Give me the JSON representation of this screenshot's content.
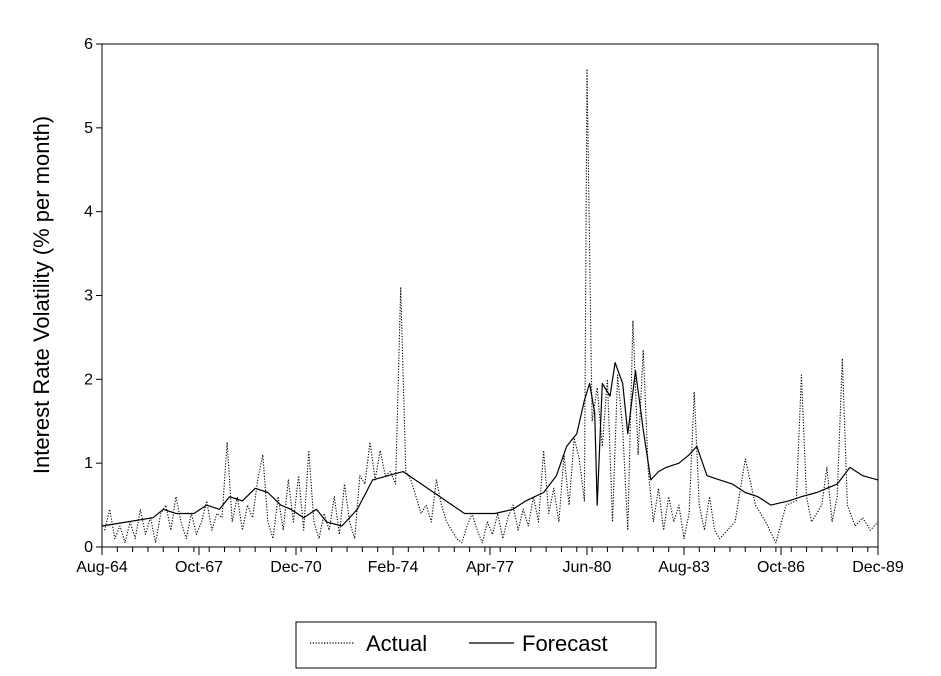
{
  "chart_data": {
    "type": "line",
    "title": "",
    "xlabel": "",
    "ylabel": "Interest Rate Volatility (% per month)",
    "ylim": [
      0,
      6
    ],
    "yticks": [
      0,
      1,
      2,
      3,
      4,
      5,
      6
    ],
    "xlim": [
      "1964-08",
      "1989-12"
    ],
    "xticks": [
      "Aug-64",
      "Oct-67",
      "Dec-70",
      "Feb-74",
      "Apr-77",
      "Jun-80",
      "Aug-83",
      "Oct-86",
      "Dec-89"
    ],
    "grid": false,
    "legend_position": "bottom-center",
    "series": [
      {
        "name": "Actual",
        "style": "dotted",
        "color": "#000000",
        "points": [
          [
            "1964-09",
            0.2
          ],
          [
            "1964-11",
            0.45
          ],
          [
            "1965-01",
            0.1
          ],
          [
            "1965-03",
            0.25
          ],
          [
            "1965-05",
            0.05
          ],
          [
            "1965-07",
            0.3
          ],
          [
            "1965-09",
            0.1
          ],
          [
            "1965-11",
            0.45
          ],
          [
            "1966-01",
            0.15
          ],
          [
            "1966-03",
            0.35
          ],
          [
            "1966-05",
            0.05
          ],
          [
            "1966-07",
            0.4
          ],
          [
            "1966-09",
            0.5
          ],
          [
            "1966-11",
            0.2
          ],
          [
            "1967-01",
            0.6
          ],
          [
            "1967-03",
            0.3
          ],
          [
            "1967-05",
            0.1
          ],
          [
            "1967-07",
            0.4
          ],
          [
            "1967-09",
            0.15
          ],
          [
            "1967-11",
            0.3
          ],
          [
            "1968-01",
            0.55
          ],
          [
            "1968-03",
            0.2
          ],
          [
            "1968-05",
            0.4
          ],
          [
            "1968-07",
            0.35
          ],
          [
            "1968-09",
            1.25
          ],
          [
            "1968-11",
            0.3
          ],
          [
            "1969-01",
            0.6
          ],
          [
            "1969-03",
            0.2
          ],
          [
            "1969-05",
            0.5
          ],
          [
            "1969-07",
            0.35
          ],
          [
            "1969-09",
            0.8
          ],
          [
            "1969-11",
            1.1
          ],
          [
            "1970-01",
            0.3
          ],
          [
            "1970-03",
            0.1
          ],
          [
            "1970-05",
            0.6
          ],
          [
            "1970-07",
            0.2
          ],
          [
            "1970-09",
            0.8
          ],
          [
            "1970-11",
            0.3
          ],
          [
            "1971-01",
            0.85
          ],
          [
            "1971-03",
            0.2
          ],
          [
            "1971-05",
            1.15
          ],
          [
            "1971-07",
            0.3
          ],
          [
            "1971-09",
            0.1
          ],
          [
            "1971-11",
            0.4
          ],
          [
            "1972-01",
            0.2
          ],
          [
            "1972-03",
            0.6
          ],
          [
            "1972-05",
            0.15
          ],
          [
            "1972-07",
            0.75
          ],
          [
            "1972-09",
            0.3
          ],
          [
            "1972-11",
            0.1
          ],
          [
            "1973-01",
            0.85
          ],
          [
            "1973-03",
            0.75
          ],
          [
            "1973-05",
            1.25
          ],
          [
            "1973-07",
            0.8
          ],
          [
            "1973-09",
            1.15
          ],
          [
            "1973-11",
            0.85
          ],
          [
            "1974-01",
            0.9
          ],
          [
            "1974-03",
            0.75
          ],
          [
            "1974-05",
            3.1
          ],
          [
            "1974-07",
            0.9
          ],
          [
            "1974-09",
            0.8
          ],
          [
            "1974-11",
            0.6
          ],
          [
            "1975-01",
            0.4
          ],
          [
            "1975-03",
            0.5
          ],
          [
            "1975-05",
            0.3
          ],
          [
            "1975-07",
            0.8
          ],
          [
            "1975-09",
            0.5
          ],
          [
            "1975-11",
            0.3
          ],
          [
            "1976-01",
            0.2
          ],
          [
            "1976-03",
            0.1
          ],
          [
            "1976-05",
            0.05
          ],
          [
            "1976-07",
            0.25
          ],
          [
            "1976-09",
            0.4
          ],
          [
            "1976-11",
            0.2
          ],
          [
            "1977-01",
            0.05
          ],
          [
            "1977-03",
            0.3
          ],
          [
            "1977-05",
            0.15
          ],
          [
            "1977-07",
            0.4
          ],
          [
            "1977-09",
            0.1
          ],
          [
            "1977-11",
            0.35
          ],
          [
            "1978-01",
            0.5
          ],
          [
            "1978-03",
            0.2
          ],
          [
            "1978-05",
            0.45
          ],
          [
            "1978-07",
            0.25
          ],
          [
            "1978-09",
            0.6
          ],
          [
            "1978-11",
            0.3
          ],
          [
            "1979-01",
            1.15
          ],
          [
            "1979-03",
            0.4
          ],
          [
            "1979-05",
            0.7
          ],
          [
            "1979-07",
            0.3
          ],
          [
            "1979-09",
            1.1
          ],
          [
            "1979-11",
            0.5
          ],
          [
            "1980-01",
            1.3
          ],
          [
            "1980-03",
            1.05
          ],
          [
            "1980-05",
            0.55
          ],
          [
            "1980-06",
            5.7
          ],
          [
            "1980-08",
            1.5
          ],
          [
            "1980-10",
            1.9
          ],
          [
            "1980-12",
            1.2
          ],
          [
            "1981-02",
            2.0
          ],
          [
            "1981-04",
            0.3
          ],
          [
            "1981-06",
            2.05
          ],
          [
            "1981-08",
            1.4
          ],
          [
            "1981-10",
            0.2
          ],
          [
            "1981-12",
            2.7
          ],
          [
            "1982-02",
            1.1
          ],
          [
            "1982-04",
            2.35
          ],
          [
            "1982-06",
            0.9
          ],
          [
            "1982-08",
            0.3
          ],
          [
            "1982-10",
            0.7
          ],
          [
            "1982-12",
            0.2
          ],
          [
            "1983-02",
            0.6
          ],
          [
            "1983-04",
            0.3
          ],
          [
            "1983-06",
            0.5
          ],
          [
            "1983-08",
            0.1
          ],
          [
            "1983-10",
            0.4
          ],
          [
            "1983-12",
            1.85
          ],
          [
            "1984-02",
            0.5
          ],
          [
            "1984-04",
            0.2
          ],
          [
            "1984-06",
            0.6
          ],
          [
            "1984-08",
            0.2
          ],
          [
            "1984-10",
            0.1
          ],
          [
            "1985-04",
            0.3
          ],
          [
            "1985-08",
            1.05
          ],
          [
            "1985-12",
            0.5
          ],
          [
            "1986-04",
            0.3
          ],
          [
            "1986-08",
            0.05
          ],
          [
            "1986-12",
            0.5
          ],
          [
            "1987-04",
            0.55
          ],
          [
            "1987-06",
            2.05
          ],
          [
            "1987-08",
            0.6
          ],
          [
            "1987-10",
            0.3
          ],
          [
            "1988-02",
            0.5
          ],
          [
            "1988-04",
            0.95
          ],
          [
            "1988-06",
            0.3
          ],
          [
            "1988-08",
            0.6
          ],
          [
            "1988-10",
            2.25
          ],
          [
            "1988-12",
            0.5
          ],
          [
            "1989-03",
            0.25
          ],
          [
            "1989-06",
            0.35
          ],
          [
            "1989-09",
            0.2
          ],
          [
            "1989-12",
            0.3
          ]
        ]
      },
      {
        "name": "Forecast",
        "style": "solid",
        "color": "#000000",
        "points": [
          [
            "1964-08",
            0.25
          ],
          [
            "1965-06",
            0.3
          ],
          [
            "1966-04",
            0.35
          ],
          [
            "1966-08",
            0.45
          ],
          [
            "1967-01",
            0.4
          ],
          [
            "1967-08",
            0.4
          ],
          [
            "1968-01",
            0.5
          ],
          [
            "1968-06",
            0.45
          ],
          [
            "1968-10",
            0.6
          ],
          [
            "1969-03",
            0.55
          ],
          [
            "1969-08",
            0.7
          ],
          [
            "1970-01",
            0.65
          ],
          [
            "1970-06",
            0.5
          ],
          [
            "1970-10",
            0.45
          ],
          [
            "1971-03",
            0.35
          ],
          [
            "1971-08",
            0.45
          ],
          [
            "1971-12",
            0.3
          ],
          [
            "1972-06",
            0.25
          ],
          [
            "1972-12",
            0.45
          ],
          [
            "1973-06",
            0.8
          ],
          [
            "1973-12",
            0.85
          ],
          [
            "1974-06",
            0.9
          ],
          [
            "1976-06",
            0.4
          ],
          [
            "1977-06",
            0.4
          ],
          [
            "1978-01",
            0.45
          ],
          [
            "1978-06",
            0.55
          ],
          [
            "1979-01",
            0.65
          ],
          [
            "1979-06",
            0.85
          ],
          [
            "1979-10",
            1.2
          ],
          [
            "1980-02",
            1.35
          ],
          [
            "1980-05",
            1.75
          ],
          [
            "1980-07",
            1.95
          ],
          [
            "1980-09",
            1.6
          ],
          [
            "1980-10",
            0.5
          ],
          [
            "1980-12",
            1.95
          ],
          [
            "1981-03",
            1.8
          ],
          [
            "1981-05",
            2.2
          ],
          [
            "1981-08",
            1.95
          ],
          [
            "1981-10",
            1.35
          ],
          [
            "1982-01",
            2.1
          ],
          [
            "1982-04",
            1.4
          ],
          [
            "1982-07",
            0.8
          ],
          [
            "1982-10",
            0.9
          ],
          [
            "1983-01",
            0.95
          ],
          [
            "1983-06",
            1.0
          ],
          [
            "1983-10",
            1.1
          ],
          [
            "1984-01",
            1.2
          ],
          [
            "1984-05",
            0.85
          ],
          [
            "1984-10",
            0.8
          ],
          [
            "1985-03",
            0.75
          ],
          [
            "1985-08",
            0.65
          ],
          [
            "1986-01",
            0.6
          ],
          [
            "1986-06",
            0.5
          ],
          [
            "1987-01",
            0.55
          ],
          [
            "1987-06",
            0.6
          ],
          [
            "1987-12",
            0.65
          ],
          [
            "1988-04",
            0.7
          ],
          [
            "1988-08",
            0.75
          ],
          [
            "1989-01",
            0.95
          ],
          [
            "1989-06",
            0.85
          ],
          [
            "1989-12",
            0.8
          ]
        ]
      }
    ]
  }
}
